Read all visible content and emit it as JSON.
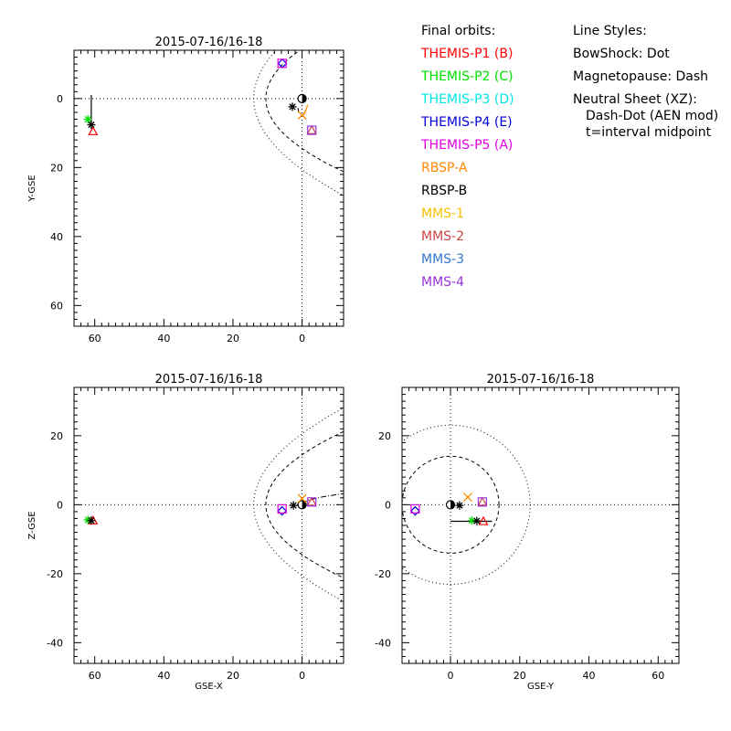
{
  "legend": {
    "orbits_title": "Final orbits:",
    "orbits": [
      {
        "label": "THEMIS-P1 (B)",
        "color": "#ff0000",
        "symbol": "triangle"
      },
      {
        "label": "THEMIS-P2 (C)",
        "color": "#00e000",
        "symbol": "asterisk"
      },
      {
        "label": "THEMIS-P3 (D)",
        "color": "#00e5e5",
        "symbol": "none"
      },
      {
        "label": "THEMIS-P4 (E)",
        "color": "#0000dd",
        "symbol": "diamond"
      },
      {
        "label": "THEMIS-P5 (A)",
        "color": "#e000e0",
        "symbol": "square"
      },
      {
        "label": "RBSP-A",
        "color": "#ff8800",
        "symbol": "x"
      },
      {
        "label": "RBSP-B",
        "color": "#000000",
        "symbol": "asterisk"
      },
      {
        "label": "MMS-1",
        "color": "#f5c000",
        "symbol": "none"
      },
      {
        "label": "MMS-2",
        "color": "#cc4444",
        "symbol": "triangle"
      },
      {
        "label": "MMS-3",
        "color": "#3377cc",
        "symbol": "diamond"
      },
      {
        "label": "MMS-4",
        "color": "#9933dd",
        "symbol": "square"
      }
    ],
    "styles_title": "Line Styles:",
    "styles": [
      "BowShock: Dot",
      "Magnetopause: Dash",
      "Neutral Sheet (XZ):"
    ],
    "styles_sub": [
      "Dash-Dot (AEN mod)",
      "t=interval midpoint"
    ]
  },
  "chart_data": [
    {
      "type": "scatter",
      "name": "xy",
      "title": "2015-07-16/16-18",
      "xlabel": "",
      "ylabel": "Y-GSE",
      "xlim": [
        66,
        -12
      ],
      "ylim": [
        -14,
        66
      ],
      "xticks": [
        60,
        40,
        20,
        0
      ],
      "yticks": [
        0,
        20,
        40,
        60
      ],
      "points": [
        {
          "sc": "THEMIS-P1 (B)",
          "x": 60.5,
          "y": 9.5
        },
        {
          "sc": "THEMIS-P2 (C)",
          "x": 62.0,
          "y": 6.0
        },
        {
          "sc": "THEMIS-P4 (E)",
          "x": 5.7,
          "y": -10.2
        },
        {
          "sc": "THEMIS-P5 (A)",
          "x": 5.8,
          "y": -10.2
        },
        {
          "sc": "RBSP-A",
          "x": 0.0,
          "y": 4.8
        },
        {
          "sc": "RBSP-B",
          "x": 2.8,
          "y": 2.4
        },
        {
          "sc": "RBSP-B",
          "x": 61.0,
          "y": 7.6
        },
        {
          "sc": "MMS-2",
          "x": -2.8,
          "y": 9.2
        },
        {
          "sc": "MMS-4",
          "x": -2.8,
          "y": 9.2
        }
      ]
    },
    {
      "type": "scatter",
      "name": "xz",
      "title": "2015-07-16/16-18",
      "xlabel": "GSE-X",
      "ylabel": "Z-GSE",
      "xlim": [
        66,
        -12
      ],
      "ylim": [
        -46,
        34
      ],
      "xticks": [
        60,
        40,
        20,
        0
      ],
      "yticks": [
        20,
        0,
        -20,
        -40
      ],
      "points": [
        {
          "sc": "THEMIS-P1 (B)",
          "x": 60.5,
          "y": -4.6
        },
        {
          "sc": "THEMIS-P2 (C)",
          "x": 62.0,
          "y": -4.4
        },
        {
          "sc": "THEMIS-P4 (E)",
          "x": 5.8,
          "y": -1.8
        },
        {
          "sc": "THEMIS-P5 (A)",
          "x": 5.8,
          "y": -1.2
        },
        {
          "sc": "RBSP-A",
          "x": 0.0,
          "y": 1.8
        },
        {
          "sc": "RBSP-B",
          "x": 2.5,
          "y": -0.2
        },
        {
          "sc": "RBSP-B",
          "x": 61.0,
          "y": -4.6
        },
        {
          "sc": "MMS-2",
          "x": -2.8,
          "y": 0.8
        },
        {
          "sc": "MMS-4",
          "x": -2.8,
          "y": 0.8
        }
      ]
    },
    {
      "type": "scatter",
      "name": "yz",
      "title": "2015-07-16/16-18",
      "xlabel": "GSE-Y",
      "ylabel": "",
      "xlim": [
        -14,
        66
      ],
      "ylim": [
        -46,
        34
      ],
      "xticks": [
        0,
        20,
        40,
        60
      ],
      "yticks": [
        20,
        0,
        -20,
        -40
      ],
      "points": [
        {
          "sc": "THEMIS-P1 (B)",
          "x": 9.5,
          "y": -4.8
        },
        {
          "sc": "THEMIS-P2 (C)",
          "x": 6.2,
          "y": -4.6
        },
        {
          "sc": "THEMIS-P4 (E)",
          "x": -10.2,
          "y": -1.8
        },
        {
          "sc": "THEMIS-P5 (A)",
          "x": -10.2,
          "y": -1.2
        },
        {
          "sc": "RBSP-A",
          "x": 5.0,
          "y": 2.2
        },
        {
          "sc": "RBSP-B",
          "x": 2.6,
          "y": -0.2
        },
        {
          "sc": "RBSP-B",
          "x": 7.6,
          "y": -4.7
        },
        {
          "sc": "MMS-2",
          "x": 9.2,
          "y": 0.8
        },
        {
          "sc": "MMS-4",
          "x": 9.2,
          "y": 0.8
        }
      ]
    }
  ]
}
